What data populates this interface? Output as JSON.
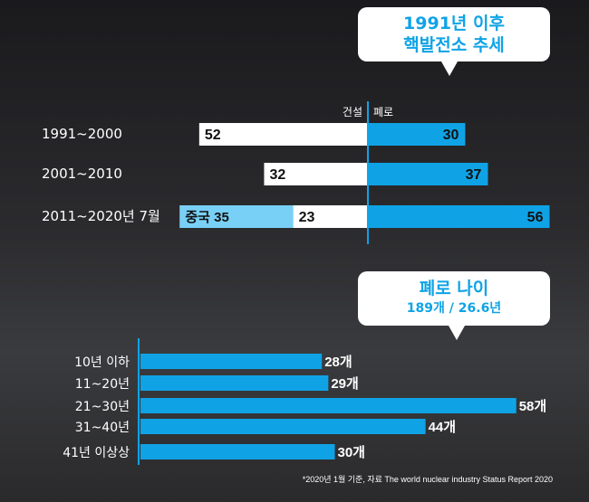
{
  "colors": {
    "accent": "#0fa3e6",
    "china": "#79d0f6",
    "white": "#ffffff",
    "axis": "#0fa3e6"
  },
  "top_bubble": {
    "line1": "1991년 이후",
    "line2": "핵발전소 추세"
  },
  "bottom_bubble": {
    "line1": "폐로 나이",
    "line2": "189개 / 26.6년"
  },
  "footnote": "*2020년 1월 기준, 자료 The world nuclear industry Status Report 2020",
  "chart_data": [
    {
      "type": "bar",
      "orientation": "diverging-horizontal",
      "categories": [
        "1991~2000",
        "2001~2010",
        "2011~2020년 7월"
      ],
      "series": [
        {
          "name": "건설",
          "values": [
            52,
            32,
            58
          ]
        },
        {
          "name": "폐로",
          "values": [
            30,
            37,
            56
          ]
        }
      ],
      "value_labels": {
        "건설": [
          "52",
          "32",
          "23"
        ],
        "폐로": [
          "30",
          "37",
          "56"
        ]
      },
      "segments": [
        {
          "category": "2011~2020년 7월",
          "series": "건설",
          "label": "중국 35",
          "value": 35
        }
      ]
    },
    {
      "type": "bar",
      "orientation": "horizontal",
      "categories": [
        "10년 이하",
        "11~20년",
        "21~30년",
        "31~40년",
        "41년 이상상"
      ],
      "values": [
        28,
        29,
        58,
        44,
        30
      ],
      "value_labels": [
        "28개",
        "29개",
        "58개",
        "44개",
        "30개"
      ]
    }
  ]
}
